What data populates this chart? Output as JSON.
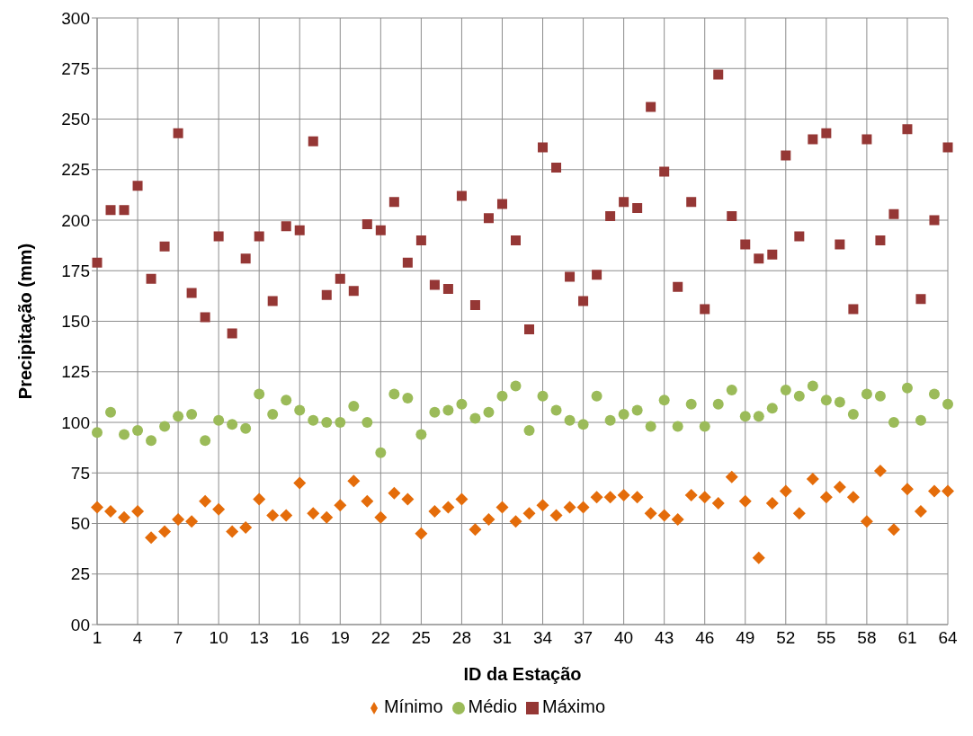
{
  "chart_data": {
    "type": "scatter",
    "xlabel": "ID da Estação",
    "ylabel": "Precipitação (mm)",
    "categories": [
      "1",
      null,
      null,
      "4",
      null,
      null,
      "7",
      null,
      null,
      "10",
      null,
      null,
      "13",
      null,
      null,
      "16",
      null,
      null,
      "19",
      null,
      null,
      "22",
      null,
      null,
      "25",
      null,
      null,
      "28",
      null,
      null,
      "31",
      null,
      null,
      "34",
      null,
      null,
      "37",
      null,
      null,
      "40",
      null,
      null,
      "43",
      null,
      null,
      "46",
      null,
      null,
      "49",
      null,
      null,
      "52",
      null,
      null,
      "55",
      null,
      null,
      "58",
      null,
      null,
      "61",
      null,
      null,
      "64"
    ],
    "series": [
      {
        "name": "Mínimo",
        "color": "#e46c0a",
        "marker": "diamond",
        "values": [
          58,
          56,
          53,
          56,
          43,
          46,
          52,
          51,
          61,
          57,
          46,
          48,
          62,
          54,
          54,
          70,
          55,
          53,
          59,
          71,
          61,
          53,
          65,
          62,
          45,
          56,
          58,
          62,
          47,
          52,
          58,
          51,
          55,
          59,
          54,
          58,
          58,
          63,
          63,
          64,
          63,
          55,
          54,
          52,
          64,
          63,
          60,
          73,
          61,
          33,
          60,
          66,
          55,
          72,
          63,
          68,
          63,
          51,
          76,
          47,
          67,
          56,
          66,
          66
        ]
      },
      {
        "name": "Médio",
        "color": "#9bbb59",
        "marker": "circle",
        "values": [
          95,
          105,
          94,
          96,
          91,
          98,
          103,
          104,
          91,
          101,
          99,
          97,
          114,
          104,
          111,
          106,
          101,
          100,
          100,
          108,
          100,
          85,
          114,
          112,
          94,
          105,
          106,
          109,
          102,
          105,
          113,
          118,
          96,
          113,
          106,
          101,
          99,
          113,
          101,
          104,
          106,
          98,
          111,
          98,
          109,
          98,
          109,
          116,
          103,
          103,
          107,
          116,
          113,
          118,
          111,
          110,
          104,
          114,
          113,
          100,
          117,
          101,
          114,
          109
        ]
      },
      {
        "name": "Máximo",
        "color": "#953735",
        "marker": "square",
        "values": [
          179,
          205,
          205,
          217,
          171,
          187,
          243,
          164,
          152,
          192,
          144,
          181,
          192,
          160,
          197,
          195,
          239,
          163,
          171,
          165,
          198,
          195,
          209,
          179,
          190,
          168,
          166,
          212,
          158,
          201,
          208,
          190,
          146,
          236,
          226,
          172,
          160,
          173,
          202,
          209,
          206,
          256,
          224,
          167,
          209,
          156,
          272,
          202,
          188,
          181,
          183,
          232,
          192,
          240,
          243,
          188,
          156,
          240,
          190,
          203,
          245,
          161,
          200,
          236
        ]
      }
    ],
    "ylim": [
      0,
      300
    ],
    "yticks": [
      {
        "value": 0,
        "label": "00"
      },
      25,
      50,
      75,
      100,
      125,
      150,
      175,
      200,
      225,
      250,
      275,
      300
    ],
    "grid": true,
    "legend": "bottom"
  }
}
